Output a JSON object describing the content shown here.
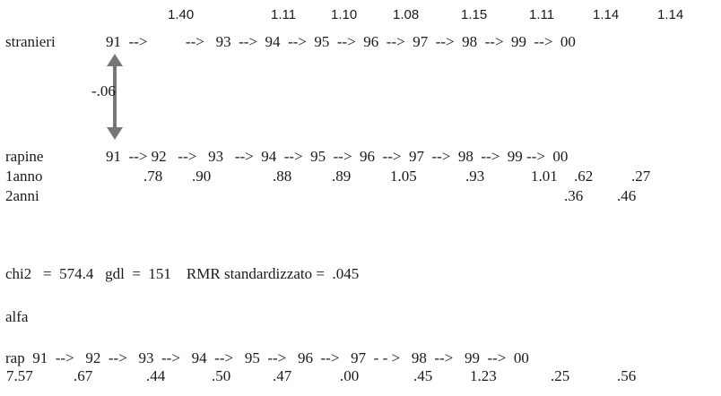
{
  "stranieri": {
    "label": "stranieri",
    "coefficients": [
      "1.40",
      "1.11",
      "1.10",
      "1.08",
      "1.15",
      "1.11",
      "1.14",
      "1.14"
    ],
    "sequence": "91  -->          -->   93  -->  94  -->  95  -->  96  -->  97  -->  98  -->  99  -->  00"
  },
  "correlation": {
    "label": "-.06"
  },
  "rapine": {
    "label": "rapine",
    "sequence": "91  --> 92   -->   93   -->  94  -->  95  -->  96  -->  97  -->  98  -->  99 -->  00",
    "lag1": {
      "label": "1anno",
      "values": [
        ".78",
        ".90",
        ".88",
        ".89",
        "1.05",
        ".93",
        "1.01",
        ".62",
        ".27"
      ]
    },
    "lag2": {
      "label": "2anni",
      "values": [
        ".36",
        ".46"
      ]
    }
  },
  "fit": {
    "text": "chi2   =  574.4   gdl  =  151    RMR standardizzato =  .045"
  },
  "alfa": {
    "label": "alfa",
    "sequence": "rap  91  -->   92  -->   93  -->   94  -->   95  -->   96  -->   97  - - >   98  -->   99  -->  00",
    "values": [
      "7.57",
      ".67",
      ".44",
      ".50",
      ".47",
      ".00",
      ".45",
      "1.23",
      ".25",
      ".56"
    ]
  },
  "colors": {
    "text": "#1a1a1a",
    "arrow": "#777777"
  }
}
